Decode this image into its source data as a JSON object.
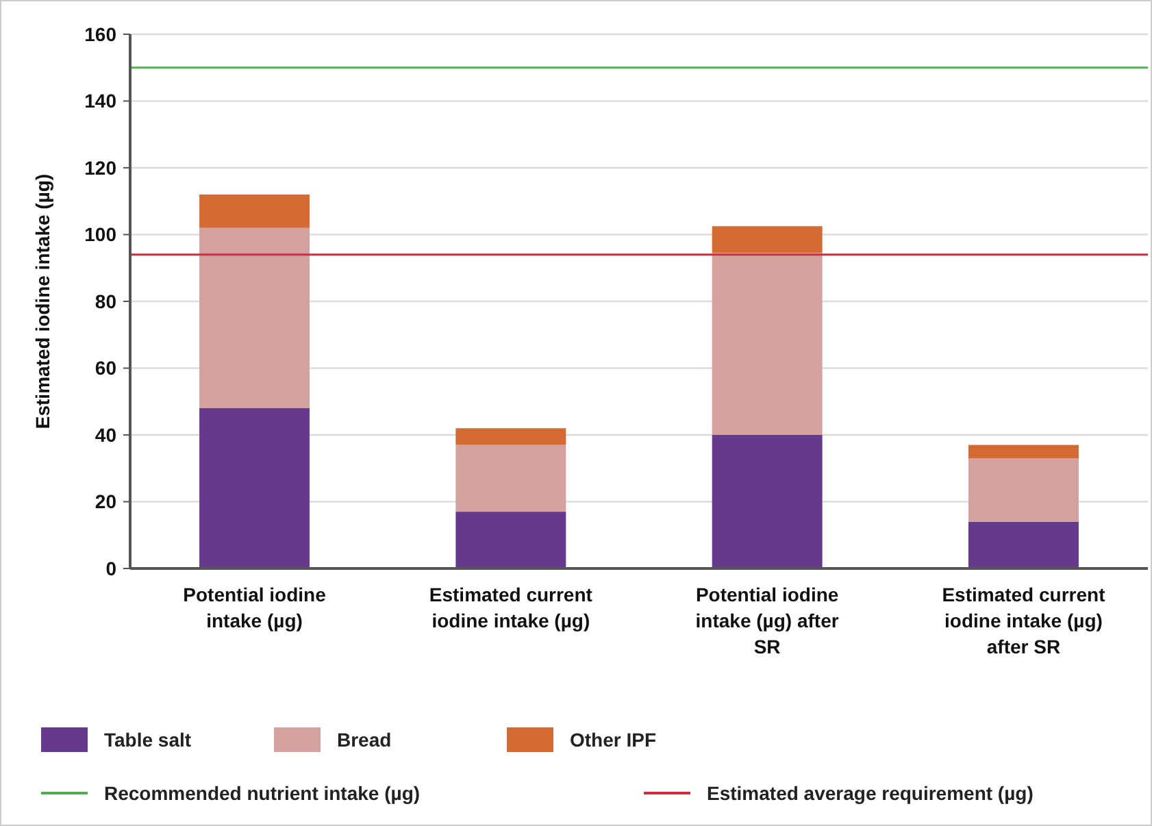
{
  "chart_data": {
    "type": "bar",
    "stacked": true,
    "ylabel": "Estimated iodine intake (µg)",
    "categories": [
      "Potential iodine intake (µg)",
      "Estimated current iodine intake (µg)",
      "Potential iodine intake (µg) after SR",
      "Estimated current iodine intake (µg) after SR"
    ],
    "series": [
      {
        "name": "Table salt",
        "color": "#653a8c",
        "values": [
          48,
          17,
          40,
          14
        ]
      },
      {
        "name": "Bread",
        "color": "#d4a1a1",
        "values": [
          54,
          20,
          54.5,
          19
        ]
      },
      {
        "name": "Other IPF",
        "color": "#d46b34",
        "values": [
          10,
          5,
          8,
          4
        ]
      }
    ],
    "ylim": [
      0,
      160
    ],
    "yticks": [
      0,
      20,
      40,
      60,
      80,
      100,
      120,
      140,
      160
    ],
    "grid": "y",
    "legend": "bottom",
    "ref_lines": [
      {
        "axis": "y",
        "value": 150,
        "label": "Recommended nutrient intake (µg)",
        "color": "#4caf50"
      },
      {
        "axis": "y",
        "value": 94,
        "label": "Estimated average requirement (µg)",
        "color": "#c8313f"
      }
    ]
  }
}
